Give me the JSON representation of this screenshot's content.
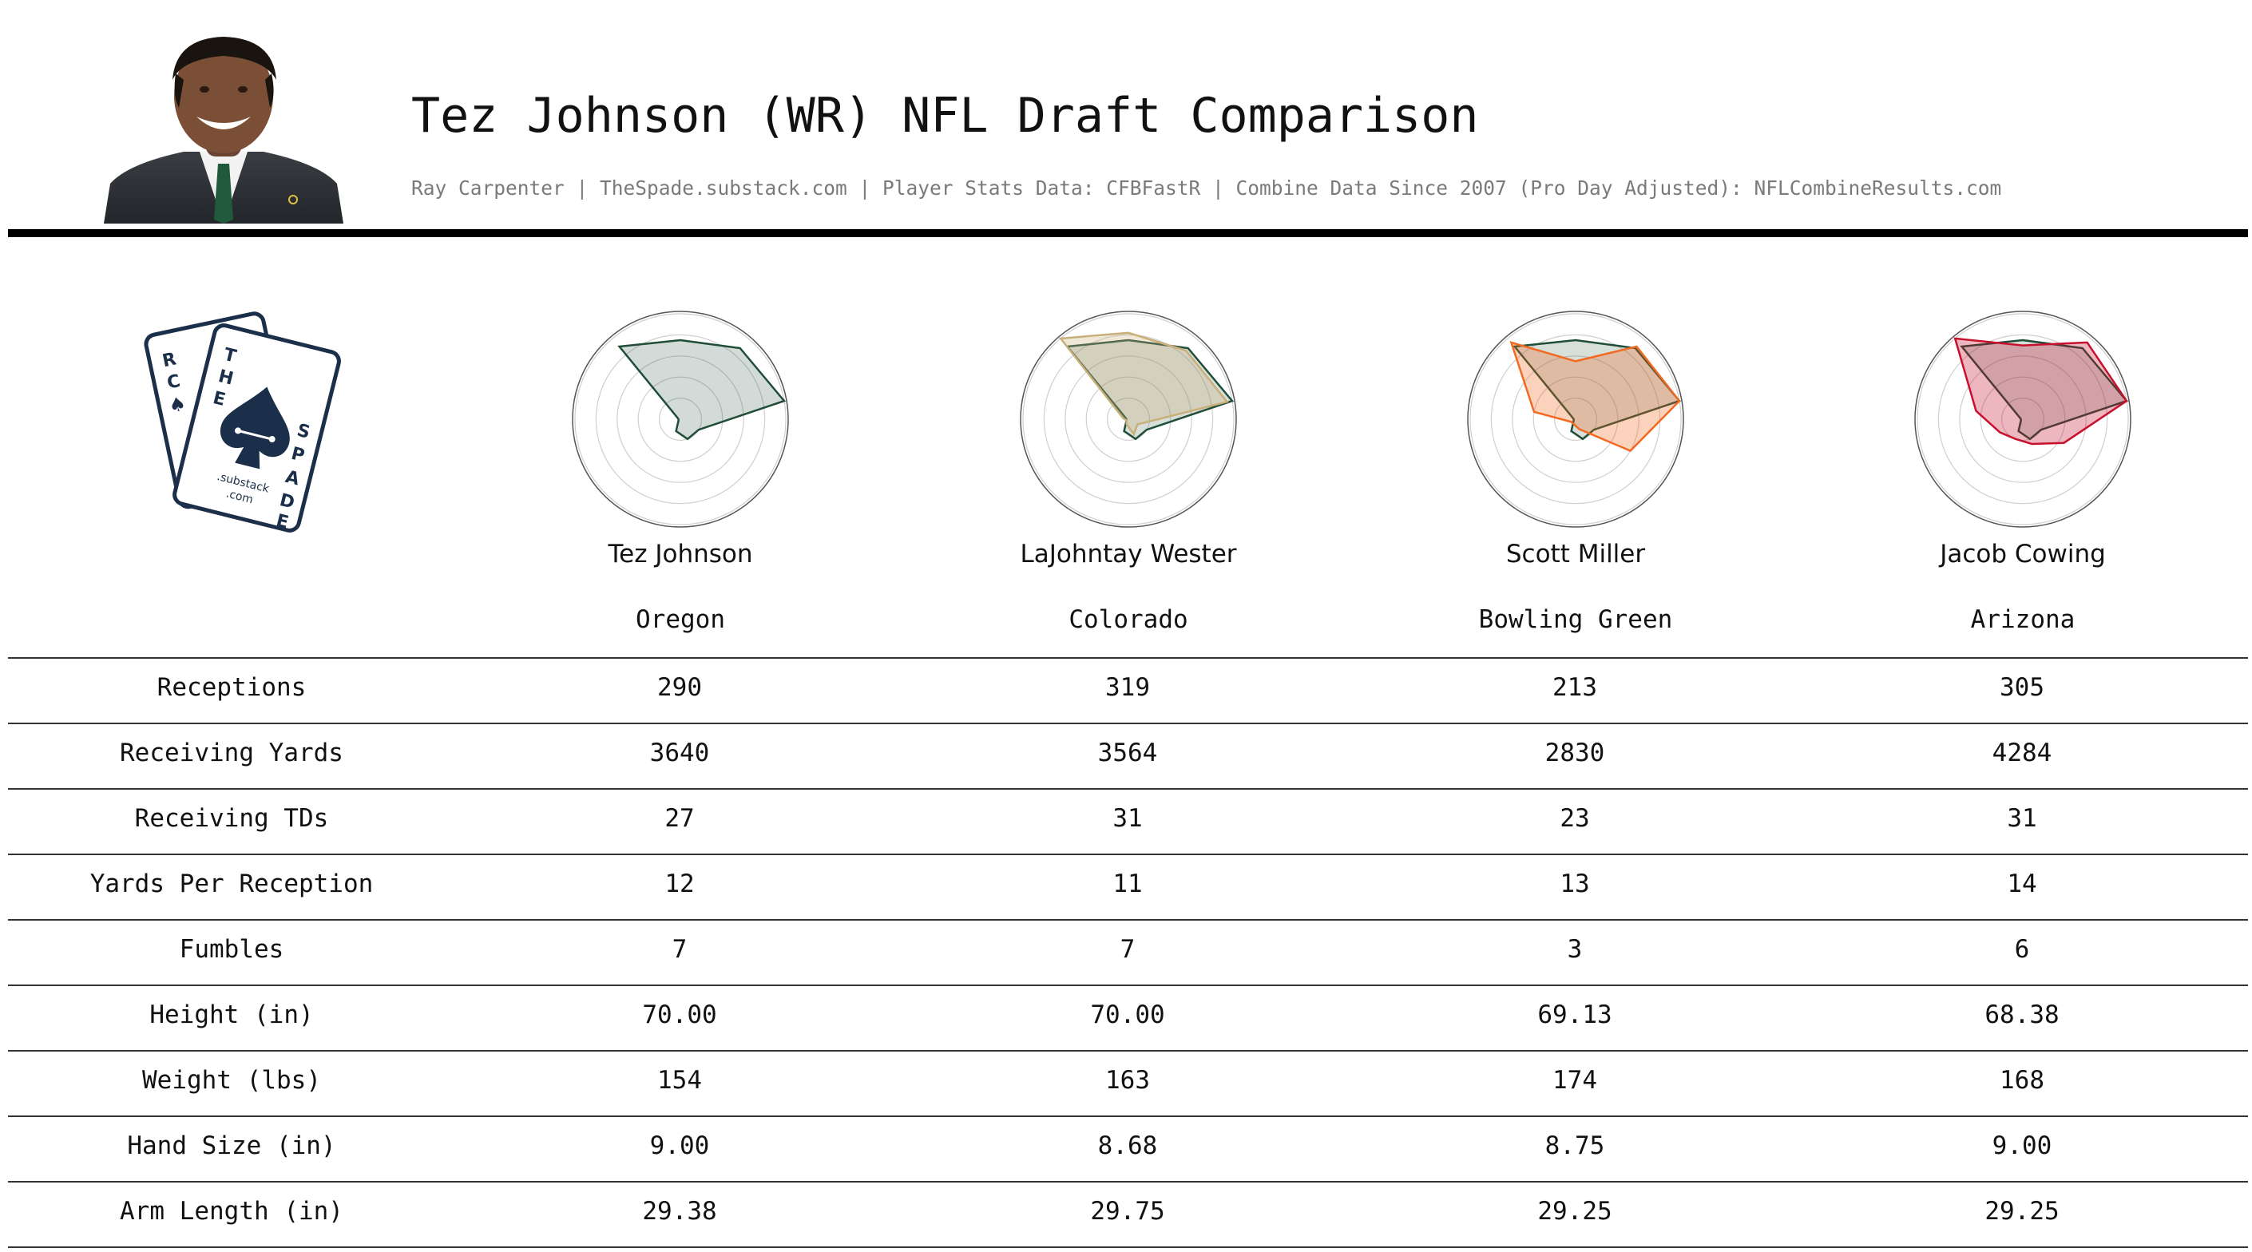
{
  "header": {
    "title": "Tez Johnson (WR) NFL Draft Comparison",
    "subtitle": "Ray Carpenter | TheSpade.substack.com | Player Stats Data: CFBFastR | Combine Data Since 2007 (Pro Day Adjusted): NFLCombineResults.com"
  },
  "logo": {
    "card_letters_back": [
      "R",
      "C",
      "♠"
    ],
    "card_letters_front": [
      "T",
      "H",
      "E",
      "S",
      "P",
      "A",
      "D",
      "E"
    ],
    "card_text_small_1": ".substack",
    "card_text_small_2": ".com",
    "color": "#1c2f4a"
  },
  "players": [
    {
      "name": "Tez Johnson",
      "school": "Oregon",
      "color": "#1f4d37"
    },
    {
      "name": "LaJohntay Wester",
      "school": "Colorado",
      "color": "#c9b07a"
    },
    {
      "name": "Scott Miller",
      "school": "Bowling Green",
      "color": "#f26a21"
    },
    {
      "name": "Jacob Cowing",
      "school": "Arizona",
      "color": "#c8102e"
    }
  ],
  "table": {
    "rows": [
      {
        "label": "Receptions",
        "values": [
          "290",
          "319",
          "213",
          "305"
        ]
      },
      {
        "label": "Receiving Yards",
        "values": [
          "3640",
          "3564",
          "2830",
          "4284"
        ]
      },
      {
        "label": "Receiving TDs",
        "values": [
          "27",
          "31",
          "23",
          "31"
        ]
      },
      {
        "label": "Yards Per Reception",
        "values": [
          "12",
          "11",
          "13",
          "14"
        ]
      },
      {
        "label": "Fumbles",
        "values": [
          "7",
          "7",
          "3",
          "6"
        ]
      },
      {
        "label": "Height (in)",
        "values": [
          "70.00",
          "70.00",
          "69.13",
          "68.38"
        ]
      },
      {
        "label": "Weight (lbs)",
        "values": [
          "154",
          "163",
          "174",
          "168"
        ]
      },
      {
        "label": "Hand Size (in)",
        "values": [
          "9.00",
          "8.68",
          "8.75",
          "9.00"
        ]
      },
      {
        "label": "Arm Length (in)",
        "values": [
          "29.38",
          "29.75",
          "29.25",
          "29.25"
        ]
      }
    ]
  },
  "chart_data": {
    "type": "radar",
    "axes_count": 9,
    "rmax": 100,
    "rings": [
      20,
      40,
      60,
      80,
      100
    ],
    "reference_series_color": "#1f4d37",
    "reference_values": [
      75,
      88,
      100,
      20,
      20,
      12,
      2,
      2,
      90
    ],
    "series": [
      {
        "name": "Tez Johnson",
        "color": "#1f4d37",
        "values": [
          75,
          88,
          100,
          20,
          20,
          12,
          2,
          2,
          90
        ]
      },
      {
        "name": "LaJohntay Wester",
        "color": "#c9b07a",
        "values": [
          82,
          85,
          95,
          10,
          15,
          5,
          2,
          5,
          100
        ]
      },
      {
        "name": "Scott Miller",
        "color": "#f26a21",
        "values": [
          55,
          90,
          100,
          60,
          10,
          5,
          5,
          40,
          95
        ]
      },
      {
        "name": "Jacob Cowing",
        "color": "#c8102e",
        "values": [
          70,
          95,
          100,
          45,
          25,
          20,
          25,
          45,
          100
        ]
      }
    ]
  }
}
